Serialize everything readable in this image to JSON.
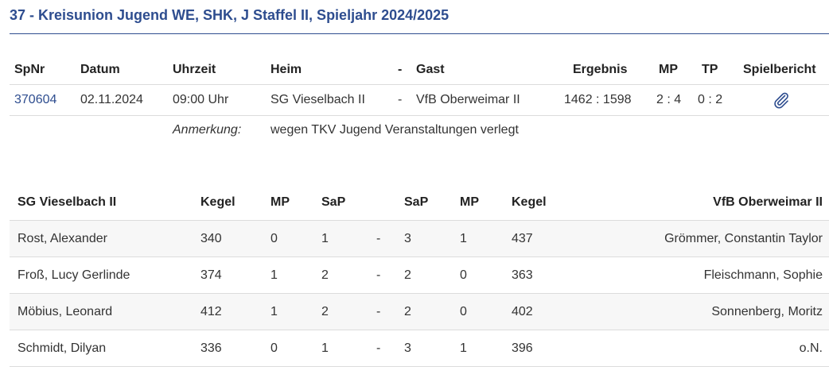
{
  "title": "37 - Kreisunion Jugend WE, SHK, J Staffel II, Spieljahr 2024/2025",
  "match_table": {
    "headers": {
      "spnr": "SpNr",
      "datum": "Datum",
      "uhrzeit": "Uhrzeit",
      "heim": "Heim",
      "dash": "-",
      "gast": "Gast",
      "ergebnis": "Ergebnis",
      "mp": "MP",
      "tp": "TP",
      "spielbericht": "Spielbericht"
    },
    "row": {
      "spnr": "370604",
      "datum": "02.11.2024",
      "uhrzeit": "09:00 Uhr",
      "heim": "SG Vieselbach II",
      "dash": "-",
      "gast": "VfB Oberweimar II",
      "ergebnis": "1462 : 1598",
      "mp": "2 : 4",
      "tp": "0 : 2",
      "spielbericht_icon": "paperclip-icon"
    },
    "note": {
      "label": "Anmerkung:",
      "text": "wegen TKV Jugend Veranstaltungen verlegt"
    }
  },
  "player_table": {
    "headers": {
      "home_team": "SG Vieselbach II",
      "kegel_home": "Kegel",
      "mp_home": "MP",
      "sap_home": "SaP",
      "sap_away": "SaP",
      "mp_away": "MP",
      "kegel_away": "Kegel",
      "away_team": "VfB Oberweimar II"
    },
    "rows": [
      {
        "home_player": "Rost, Alexander",
        "kegel_home": "340",
        "mp_home": "0",
        "sap_home": "1",
        "dash": "-",
        "sap_away": "3",
        "mp_away": "1",
        "kegel_away": "437",
        "away_player": "Grömmer, Constantin Taylor"
      },
      {
        "home_player": "Froß, Lucy Gerlinde",
        "kegel_home": "374",
        "mp_home": "1",
        "sap_home": "2",
        "dash": "-",
        "sap_away": "2",
        "mp_away": "0",
        "kegel_away": "363",
        "away_player": "Fleischmann, Sophie"
      },
      {
        "home_player": "Möbius, Leonard",
        "kegel_home": "412",
        "mp_home": "1",
        "sap_home": "2",
        "dash": "-",
        "sap_away": "2",
        "mp_away": "0",
        "kegel_away": "402",
        "away_player": "Sonnenberg, Moritz"
      },
      {
        "home_player": "Schmidt, Dilyan",
        "kegel_home": "336",
        "mp_home": "0",
        "sap_home": "1",
        "dash": "-",
        "sap_away": "3",
        "mp_away": "1",
        "kegel_away": "396",
        "away_player": "o.N."
      }
    ]
  },
  "colors": {
    "title": "#2e4d8f",
    "link": "#2e4d8f",
    "alt_row": "#f7f7f7"
  }
}
